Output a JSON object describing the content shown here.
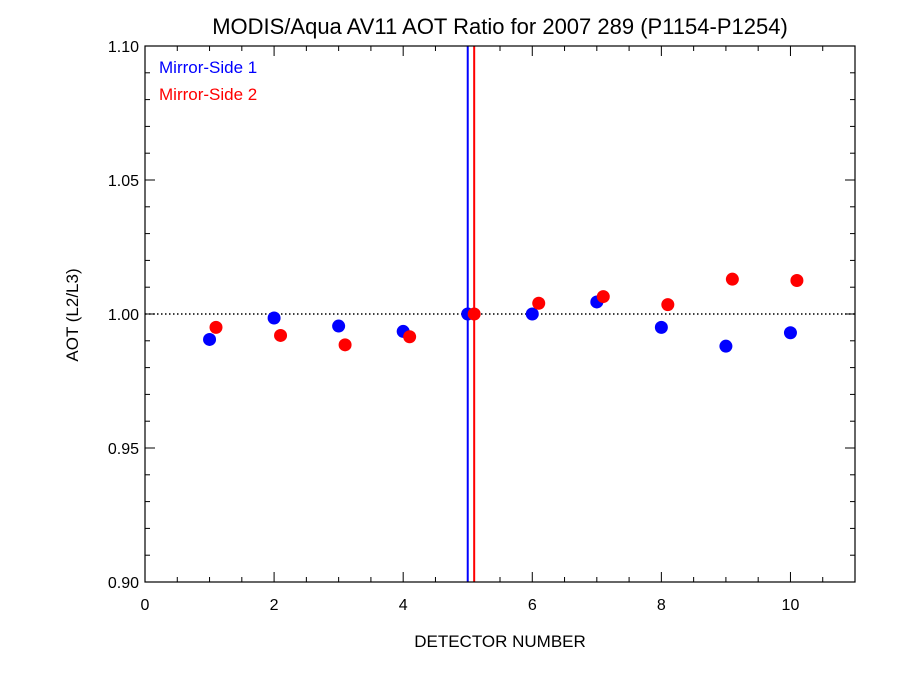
{
  "chart_data": {
    "type": "scatter",
    "title": "MODIS/Aqua AV11 AOT Ratio for 2007 289 (P1154-P1254)",
    "xlabel": "DETECTOR NUMBER",
    "ylabel": "AOT (L2/L3)",
    "xlim": [
      0,
      11
    ],
    "ylim": [
      0.9,
      1.1
    ],
    "xticks": [
      0,
      2,
      4,
      6,
      8,
      10
    ],
    "xtick_labels": [
      "0",
      "2",
      "4",
      "6",
      "8",
      "10"
    ],
    "yticks": [
      0.9,
      0.95,
      1.0,
      1.05,
      1.1
    ],
    "ytick_labels": [
      "0.90",
      "0.95",
      "1.00",
      "1.05",
      "1.10"
    ],
    "reference_line_y": 1.0,
    "legend_position": "top-left",
    "series": [
      {
        "name": "Mirror-Side 1",
        "color": "#0000ff",
        "x": [
          1,
          2,
          3,
          4,
          5,
          6,
          7,
          8,
          9,
          10
        ],
        "y": [
          0.9905,
          0.9985,
          0.9955,
          0.9935,
          1.0,
          1.0,
          1.0045,
          0.995,
          0.988,
          0.993
        ],
        "vertical_line_x": 5.0
      },
      {
        "name": "Mirror-Side 2",
        "color": "#ff0000",
        "x": [
          1.1,
          2.1,
          3.1,
          4.1,
          5.1,
          6.1,
          7.1,
          8.1,
          9.1,
          10.1
        ],
        "y": [
          0.995,
          0.992,
          0.9885,
          0.9915,
          1.0,
          1.004,
          1.0065,
          1.0035,
          1.013,
          1.0125
        ],
        "vertical_line_x": 5.1
      }
    ]
  }
}
